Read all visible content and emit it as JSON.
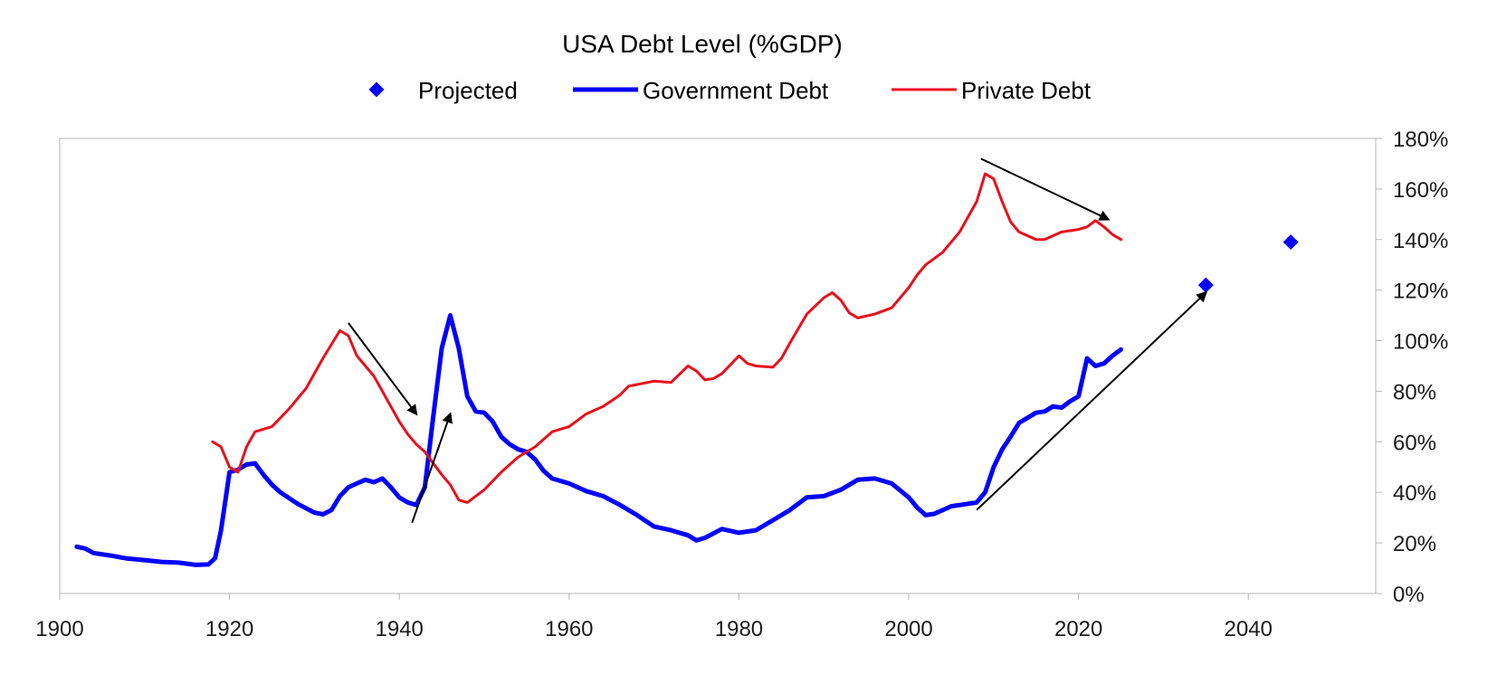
{
  "chart_data": {
    "type": "line",
    "title": "USA Debt Level (%GDP)",
    "xlabel": "",
    "ylabel": "",
    "xlim": [
      1900,
      2055
    ],
    "ylim": [
      0,
      180
    ],
    "x_ticks": [
      1900,
      1920,
      1940,
      1960,
      1980,
      2000,
      2020,
      2040
    ],
    "x_tick_labels": [
      "1900",
      "1920",
      "1940",
      "1960",
      "1980",
      "2000",
      "2020",
      "2040"
    ],
    "y_ticks": [
      0,
      20,
      40,
      60,
      80,
      100,
      120,
      140,
      160,
      180
    ],
    "y_tick_labels": [
      "0%",
      "20%",
      "40%",
      "60%",
      "80%",
      "100%",
      "120%",
      "140%",
      "160%",
      "180%"
    ],
    "y_axis_side": "right",
    "grid": false,
    "legend_position": "top-center",
    "legend": [
      {
        "name": "Projected",
        "marker": "diamond",
        "color": "#0000ff"
      },
      {
        "name": "Government Debt",
        "marker": "line",
        "color": "#0000ff"
      },
      {
        "name": "Private Debt",
        "marker": "line",
        "color": "#e8101c"
      }
    ],
    "series": [
      {
        "name": "Government Debt",
        "color": "#0000ff",
        "x": [
          1902,
          1903,
          1904,
          1906,
          1908,
          1910,
          1912,
          1914,
          1916,
          1917.5,
          1918.3,
          1919,
          1920,
          1921,
          1922,
          1923,
          1924,
          1925,
          1926,
          1928,
          1930,
          1931,
          1932,
          1933,
          1934,
          1935,
          1936,
          1937,
          1938,
          1939,
          1940,
          1941,
          1942,
          1943,
          1944,
          1945,
          1946,
          1947,
          1948,
          1949,
          1950,
          1951,
          1952,
          1953,
          1954,
          1955,
          1956,
          1957,
          1958,
          1960,
          1962,
          1964,
          1966,
          1968,
          1970,
          1972,
          1974,
          1975,
          1976,
          1978,
          1980,
          1982,
          1984,
          1986,
          1988,
          1990,
          1992,
          1994,
          1996,
          1998,
          2000,
          2001,
          2002,
          2003,
          2005,
          2007,
          2008,
          2009,
          2010,
          2011,
          2012,
          2013,
          2014,
          2015,
          2016,
          2017,
          2018,
          2019,
          2020,
          2021,
          2022,
          2023,
          2024,
          2025
        ],
        "values": [
          18.5,
          17.8,
          16,
          15,
          13.8,
          13.2,
          12.5,
          12.2,
          11.3,
          11.5,
          14,
          25,
          48,
          49,
          51,
          51.5,
          47,
          43,
          40,
          35.5,
          32,
          31.3,
          33,
          38.5,
          42,
          43.5,
          45,
          44,
          45.5,
          42,
          38,
          36,
          35,
          42,
          70,
          97,
          110,
          97,
          78,
          72,
          71.5,
          68,
          62,
          59,
          57,
          56,
          53,
          48.5,
          45.5,
          43.5,
          40.5,
          38.5,
          35,
          31,
          26.5,
          25,
          23,
          21,
          22,
          25.5,
          24,
          25,
          29,
          33,
          38,
          38.5,
          41,
          45,
          45.5,
          43.5,
          38,
          34,
          31,
          31.5,
          34.5,
          35.5,
          36,
          40,
          50,
          57,
          62,
          67.5,
          69.5,
          71.5,
          72,
          74,
          73.5,
          76,
          78,
          93,
          90,
          91,
          94,
          96.5
        ]
      },
      {
        "name": "Private Debt",
        "color": "#e8101c",
        "x": [
          1918,
          1919,
          1920,
          1921,
          1922,
          1923,
          1925,
          1927,
          1929,
          1931,
          1933,
          1934,
          1935,
          1936,
          1937,
          1938,
          1939,
          1940,
          1941,
          1942,
          1943,
          1945,
          1946,
          1947,
          1948,
          1950,
          1952,
          1954,
          1956,
          1958,
          1960,
          1962,
          1964,
          1966,
          1967,
          1970,
          1972,
          1974,
          1975,
          1976,
          1977,
          1978,
          1980,
          1981,
          1982,
          1984,
          1985,
          1986,
          1988,
          1990,
          1991,
          1992,
          1993,
          1994,
          1996,
          1998,
          2000,
          2001,
          2002,
          2004,
          2006,
          2008,
          2009,
          2010,
          2011,
          2012,
          2013,
          2015,
          2016,
          2018,
          2019,
          2020,
          2021,
          2022,
          2023,
          2024,
          2025
        ],
        "values": [
          60,
          58,
          50,
          48,
          58,
          64,
          66,
          73,
          81,
          93,
          104,
          102,
          94,
          90,
          86,
          80,
          74,
          68,
          63,
          59,
          56,
          47,
          43,
          37,
          36,
          41,
          48,
          54,
          58,
          64,
          66,
          71,
          74,
          78.5,
          82,
          84,
          83.5,
          90,
          88,
          84.5,
          85,
          87,
          94,
          91,
          90,
          89.5,
          93,
          99,
          110.5,
          117,
          119,
          116,
          111,
          109,
          110.5,
          113,
          121,
          126,
          130,
          135,
          143,
          155,
          166,
          164,
          155,
          147,
          143,
          140,
          140,
          143,
          143.5,
          144,
          145,
          147.5,
          145,
          142,
          140
        ]
      },
      {
        "name": "Projected",
        "color": "#0000ff",
        "x": [
          2035,
          2045
        ],
        "values": [
          122,
          139
        ]
      }
    ],
    "annotations": [
      {
        "type": "arrow",
        "from": [
          1934,
          107
        ],
        "to": [
          1942,
          71
        ]
      },
      {
        "type": "arrow",
        "from": [
          1941.5,
          28
        ],
        "to": [
          1946,
          71
        ]
      },
      {
        "type": "arrow",
        "from": [
          2008.5,
          172
        ],
        "to": [
          2023.5,
          148
        ]
      },
      {
        "type": "arrow",
        "from": [
          2008,
          33
        ],
        "to": [
          2035,
          119
        ]
      }
    ]
  }
}
